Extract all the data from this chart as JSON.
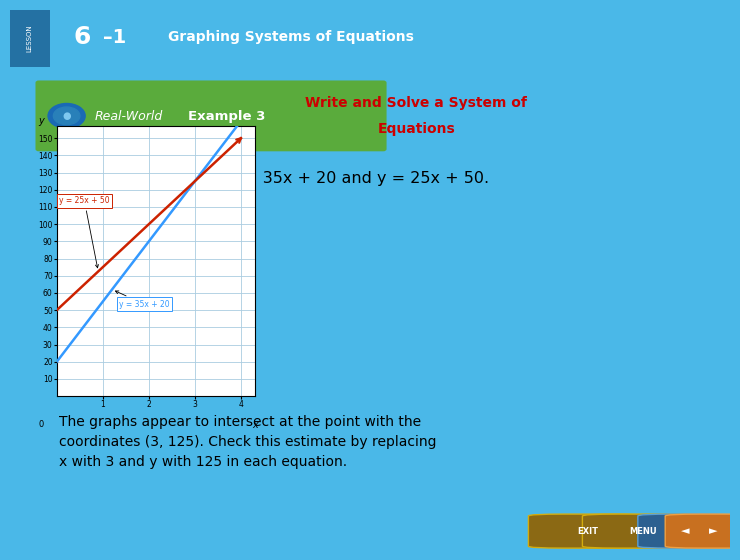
{
  "title_bar_color": "#1a5276",
  "title_text_61": "6",
  "title_text_dash": "–1",
  "title_text_main": "Graphing Systems of Equations",
  "title_text_color": "#ffffff",
  "outer_bg_color": "#4ab8e8",
  "content_bg_color": "#f5f5f5",
  "header_example_bg": "#5aab3c",
  "header_title_text_line1": "Write and Solve a System of",
  "header_title_text_line2": "Equations",
  "header_title_color": "#cc0000",
  "graph_intro_text": "Graph the equations y = 35x + 20 and y = 25x + 50.",
  "eq1_label": "y = 35x + 20",
  "eq2_label": "y = 25x + 50",
  "eq1_color": "#3399ff",
  "eq2_color": "#cc2200",
  "y_ticks": [
    10,
    20,
    30,
    40,
    50,
    60,
    70,
    80,
    90,
    100,
    110,
    120,
    130,
    140,
    150
  ],
  "x_ticks": [
    1,
    2,
    3,
    4
  ],
  "bottom_text": "The graphs appear to intersect at the point with the\ncoordinates (3, 125). Check this estimate by replacing\nx with 3 and y with 125 in each equation.",
  "grid_color": "#aacce0",
  "axis_color": "#000000",
  "graph_bg": "#ffffff",
  "footer_bg": "#4ab8e8",
  "exit_btn_color": "#8b6914",
  "nav_btn_color": "#1a5276"
}
